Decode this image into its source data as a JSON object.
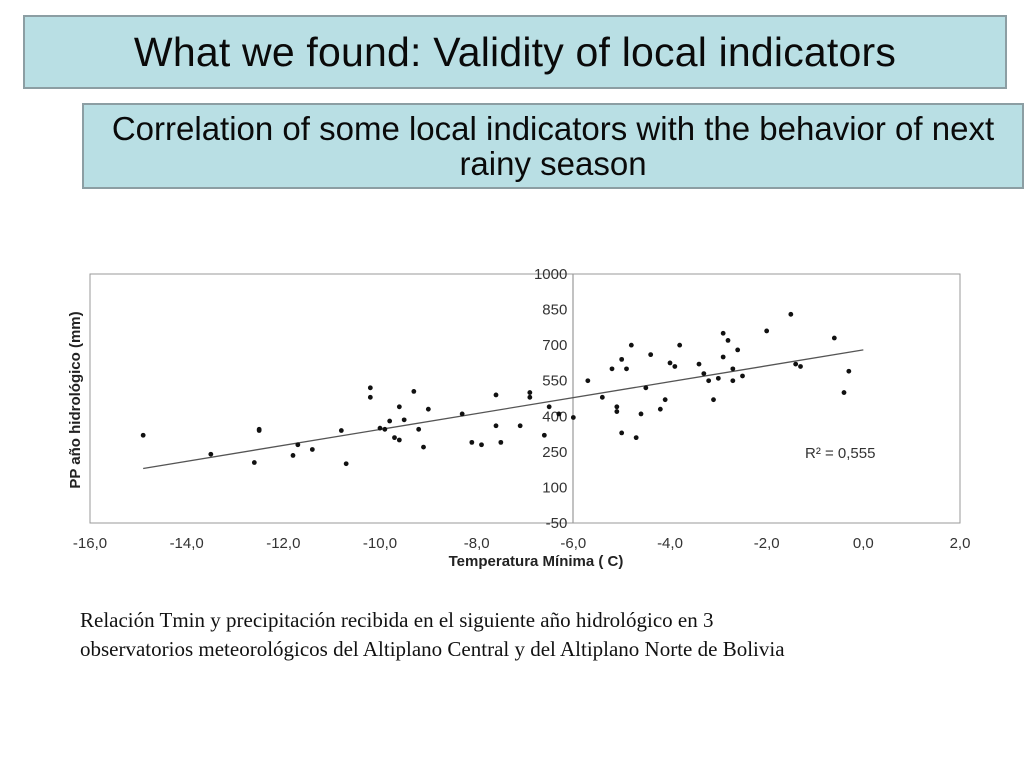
{
  "slide": {
    "title": "What we found: Validity of local indicators",
    "subtitle": "Correlation of some local indicators with the behavior of next rainy season",
    "caption_line1": "Relación Tmin y precipitación recibida en el siguiente año hidrológico en 3",
    "caption_line2": "observatorios meteorológicos del Altiplano Central y del Altiplano Norte de Bolivia"
  },
  "chart_data": {
    "type": "scatter",
    "title": "",
    "xlabel": "Temperatura Mínima ( C)",
    "ylabel": "PP año hidrológico (mm)",
    "xlim": [
      -16,
      2
    ],
    "ylim": [
      -50,
      1000
    ],
    "x_ticks": [
      "-16,0",
      "-14,0",
      "-12,0",
      "-10,0",
      "-8,0",
      "-6,0",
      "-4,0",
      "-2,0",
      "0,0",
      "2,0"
    ],
    "y_ticks": [
      "-50",
      "100",
      "250",
      "400",
      "550",
      "700",
      "850",
      "1000"
    ],
    "grid": false,
    "legend": "none",
    "annotation": "R² = 0,555",
    "trendline": {
      "x": [
        -14.9,
        0.0
      ],
      "y": [
        180,
        680
      ]
    },
    "series": [
      {
        "points": [
          [
            -14.9,
            320
          ],
          [
            -13.5,
            240
          ],
          [
            -12.5,
            345
          ],
          [
            -12.5,
            340
          ],
          [
            -12.6,
            205
          ],
          [
            -11.8,
            235
          ],
          [
            -11.7,
            280
          ],
          [
            -11.4,
            260
          ],
          [
            -10.8,
            340
          ],
          [
            -10.7,
            200
          ],
          [
            -10.2,
            520
          ],
          [
            -10.2,
            480
          ],
          [
            -10.0,
            350
          ],
          [
            -9.9,
            345
          ],
          [
            -9.8,
            380
          ],
          [
            -9.7,
            310
          ],
          [
            -9.6,
            300
          ],
          [
            -9.6,
            440
          ],
          [
            -9.5,
            385
          ],
          [
            -9.3,
            505
          ],
          [
            -9.2,
            345
          ],
          [
            -9.1,
            270
          ],
          [
            -9.0,
            430
          ],
          [
            -8.3,
            410
          ],
          [
            -8.1,
            290
          ],
          [
            -7.9,
            280
          ],
          [
            -7.6,
            490
          ],
          [
            -7.6,
            360
          ],
          [
            -7.5,
            290
          ],
          [
            -7.1,
            360
          ],
          [
            -6.9,
            500
          ],
          [
            -6.9,
            480
          ],
          [
            -6.5,
            440
          ],
          [
            -6.6,
            320
          ],
          [
            -6.3,
            410
          ],
          [
            -6.0,
            395
          ],
          [
            -5.7,
            550
          ],
          [
            -5.4,
            480
          ],
          [
            -5.2,
            600
          ],
          [
            -5.1,
            440
          ],
          [
            -5.1,
            420
          ],
          [
            -5.0,
            640
          ],
          [
            -5.0,
            330
          ],
          [
            -4.9,
            600
          ],
          [
            -4.8,
            700
          ],
          [
            -4.7,
            310
          ],
          [
            -4.6,
            410
          ],
          [
            -4.5,
            520
          ],
          [
            -4.4,
            660
          ],
          [
            -4.2,
            430
          ],
          [
            -4.1,
            470
          ],
          [
            -4.0,
            625
          ],
          [
            -3.9,
            610
          ],
          [
            -3.8,
            700
          ],
          [
            -3.4,
            620
          ],
          [
            -3.3,
            580
          ],
          [
            -3.2,
            550
          ],
          [
            -3.1,
            470
          ],
          [
            -3.0,
            560
          ],
          [
            -2.9,
            650
          ],
          [
            -2.9,
            750
          ],
          [
            -2.8,
            720
          ],
          [
            -2.7,
            600
          ],
          [
            -2.7,
            550
          ],
          [
            -2.6,
            680
          ],
          [
            -2.5,
            570
          ],
          [
            -2.0,
            760
          ],
          [
            -1.5,
            830
          ],
          [
            -1.4,
            620
          ],
          [
            -1.3,
            610
          ],
          [
            -0.6,
            730
          ],
          [
            -0.4,
            500
          ],
          [
            -0.3,
            590
          ]
        ]
      }
    ]
  }
}
